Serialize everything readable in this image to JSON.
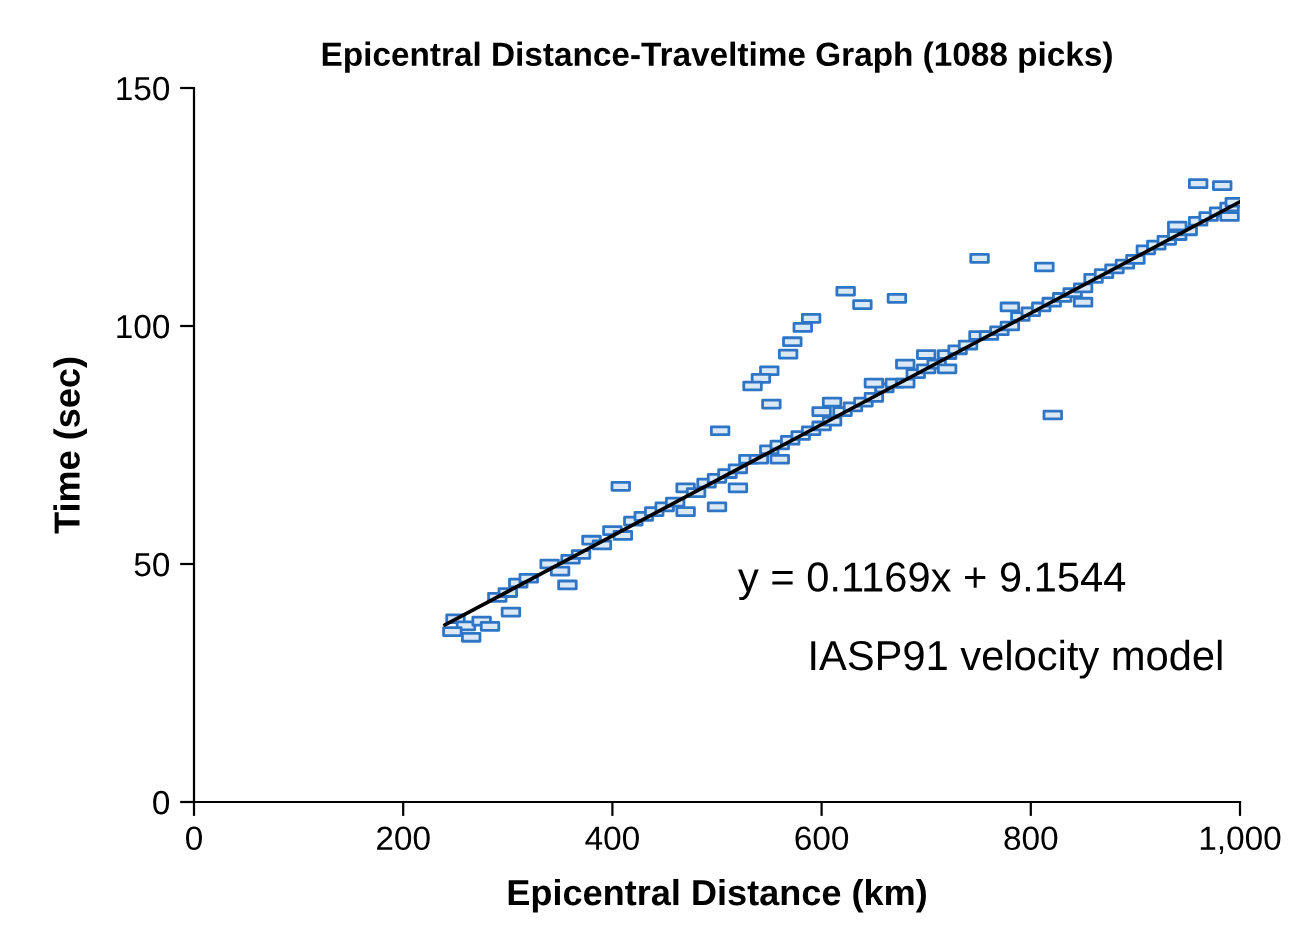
{
  "chart_data": {
    "type": "scatter",
    "title": "Epicentral Distance-Traveltime Graph (1088 picks)",
    "xlabel": "Epicentral Distance (km)",
    "ylabel": "Time (sec)",
    "xlim": [
      0,
      1000
    ],
    "xticks": [
      0,
      200,
      400,
      600,
      800,
      {
        "value": 1000,
        "label": "1,000"
      }
    ],
    "ylim": [
      0,
      150
    ],
    "yticks": [
      0,
      50,
      100,
      150
    ],
    "grid": false,
    "legend": false,
    "annotations": [
      "y = 0.1169x + 9.1544",
      "IASP91 velocity model"
    ],
    "series": [
      {
        "color": "#2e75c6",
        "marker": "square",
        "x": [
          250,
          260,
          275,
          290,
          300,
          310,
          320,
          340,
          350,
          360,
          370,
          380,
          390,
          400,
          410,
          420,
          430,
          440,
          450,
          460,
          470,
          480,
          490,
          500,
          500,
          510,
          520,
          530,
          540,
          550,
          560,
          570,
          580,
          590,
          600,
          610,
          620,
          630,
          640,
          650,
          660,
          670,
          680,
          690,
          700,
          710,
          720,
          730,
          740,
          750,
          760,
          770,
          780,
          790,
          800,
          810,
          820,
          830,
          840,
          850,
          860,
          870,
          880,
          890,
          900,
          910,
          920,
          930,
          940,
          950,
          960,
          970,
          980,
          990,
          995,
          470,
          520,
          600,
          650,
          700,
          720,
          780,
          850,
          940,
          990,
          680,
          560,
          610,
          751,
          623,
          639,
          672,
          590,
          582,
          572,
          568,
          550,
          542,
          534,
          552,
          503,
          821,
          408,
          357,
          813,
          960,
          983,
          247,
          265,
          283,
          303
        ],
        "values": [
          38.5,
          37,
          38,
          43,
          44,
          46,
          47,
          50,
          48.5,
          51,
          52,
          55,
          54,
          57,
          56,
          59,
          60,
          61,
          62,
          63,
          66,
          65,
          67,
          62,
          68,
          69,
          70,
          72,
          72,
          74,
          75,
          76,
          77,
          78,
          79,
          80,
          82,
          83,
          84,
          85,
          87,
          88,
          88,
          90,
          91,
          92,
          94,
          95,
          96,
          98,
          98,
          99,
          100,
          102,
          103,
          104,
          105,
          106,
          107,
          108,
          110,
          111,
          112,
          113,
          114,
          116,
          117,
          118,
          119,
          120,
          122,
          123,
          124,
          125,
          126,
          61,
          66,
          82,
          88,
          94,
          91,
          104,
          105,
          121,
          123,
          92,
          72,
          84,
          114.2,
          107.3,
          104.5,
          105.8,
          101.6,
          99.7,
          96.7,
          94.1,
          90.6,
          89,
          87.4,
          83.6,
          78,
          81.3,
          66.3,
          45.6,
          112.4,
          129.9,
          129.5,
          35.8,
          34.6,
          36.9,
          39.9
        ]
      },
      {
        "type": "line",
        "color": "#000000",
        "marker": "none",
        "line_style": "solid",
        "x": [
          240,
          1000
        ],
        "values": [
          37.2,
          126.1
        ]
      }
    ]
  }
}
